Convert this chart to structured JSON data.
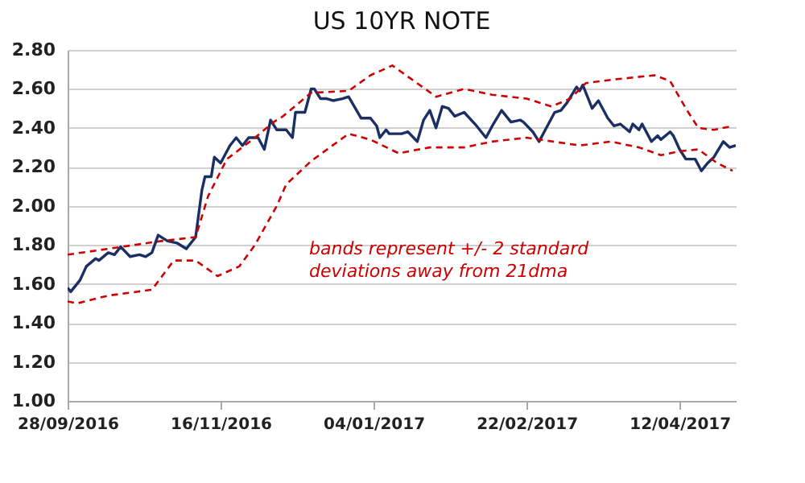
{
  "chart_data": {
    "type": "line",
    "title": "US 10YR NOTE",
    "annotations": [
      "bands represent +/- 2 standard deviations away from 21dma"
    ],
    "xlim": [
      "2016-09-28",
      "2017-04-30"
    ],
    "xticks": [
      {
        "value": "2016-09-28",
        "label": "28/09/2016"
      },
      {
        "value": "2016-11-16",
        "label": "16/11/2016"
      },
      {
        "value": "2017-01-04",
        "label": "04/01/2017"
      },
      {
        "value": "2017-02-22",
        "label": "22/02/2017"
      },
      {
        "value": "2017-04-12",
        "label": "12/04/2017"
      }
    ],
    "ylim": [
      1.0,
      2.8
    ],
    "yticks": [
      {
        "value": 1.0,
        "label": "1.00"
      },
      {
        "value": 1.2,
        "label": "1.20"
      },
      {
        "value": 1.4,
        "label": "1.40"
      },
      {
        "value": 1.6,
        "label": "1.60"
      },
      {
        "value": 1.8,
        "label": "1.80"
      },
      {
        "value": 2.0,
        "label": "2.00"
      },
      {
        "value": 2.2,
        "label": "2.20"
      },
      {
        "value": 2.4,
        "label": "2.40"
      },
      {
        "value": 2.6,
        "label": "2.60"
      },
      {
        "value": 2.8,
        "label": "2.80"
      }
    ],
    "grid": "y",
    "legend": false,
    "marker": "none",
    "series": [
      {
        "color": "#1b2f63",
        "line_style": "solid",
        "x": [
          "2016-09-28",
          "2016-09-29",
          "2016-10-02",
          "2016-10-04",
          "2016-10-07",
          "2016-10-08",
          "2016-10-11",
          "2016-10-13",
          "2016-10-15",
          "2016-10-18",
          "2016-10-21",
          "2016-10-23",
          "2016-10-25",
          "2016-10-27",
          "2016-10-30",
          "2016-11-02",
          "2016-11-05",
          "2016-11-08",
          "2016-11-10",
          "2016-11-11",
          "2016-11-13",
          "2016-11-14",
          "2016-11-16",
          "2016-11-19",
          "2016-11-21",
          "2016-11-23",
          "2016-11-25",
          "2016-11-28",
          "2016-11-30",
          "2016-12-02",
          "2016-12-04",
          "2016-12-07",
          "2016-12-09",
          "2016-12-10",
          "2016-12-13",
          "2016-12-15",
          "2016-12-16",
          "2016-12-18",
          "2016-12-20",
          "2016-12-22",
          "2016-12-25",
          "2016-12-27",
          "2016-12-31",
          "2017-01-03",
          "2017-01-05",
          "2017-01-06",
          "2017-01-08",
          "2017-01-09",
          "2017-01-13",
          "2017-01-15",
          "2017-01-18",
          "2017-01-20",
          "2017-01-22",
          "2017-01-24",
          "2017-01-26",
          "2017-01-28",
          "2017-01-30",
          "2017-02-02",
          "2017-02-06",
          "2017-02-09",
          "2017-02-11",
          "2017-02-14",
          "2017-02-17",
          "2017-02-20",
          "2017-02-21",
          "2017-02-24",
          "2017-02-26",
          "2017-02-28",
          "2017-03-03",
          "2017-03-05",
          "2017-03-07",
          "2017-03-10",
          "2017-03-11",
          "2017-03-12",
          "2017-03-15",
          "2017-03-17",
          "2017-03-20",
          "2017-03-22",
          "2017-03-24",
          "2017-03-27",
          "2017-03-28",
          "2017-03-30",
          "2017-03-31",
          "2017-04-03",
          "2017-04-05",
          "2017-04-06",
          "2017-04-09",
          "2017-04-10",
          "2017-04-12",
          "2017-04-14",
          "2017-04-17",
          "2017-04-19",
          "2017-04-21",
          "2017-04-23",
          "2017-04-26",
          "2017-04-28",
          "2017-04-30"
        ],
        "values": [
          1.58,
          1.56,
          1.62,
          1.69,
          1.73,
          1.72,
          1.76,
          1.75,
          1.79,
          1.74,
          1.75,
          1.74,
          1.76,
          1.85,
          1.82,
          1.81,
          1.78,
          1.84,
          2.08,
          2.15,
          2.15,
          2.25,
          2.22,
          2.31,
          2.35,
          2.31,
          2.35,
          2.35,
          2.29,
          2.44,
          2.39,
          2.39,
          2.35,
          2.48,
          2.48,
          2.6,
          2.6,
          2.55,
          2.55,
          2.54,
          2.55,
          2.56,
          2.45,
          2.45,
          2.41,
          2.35,
          2.39,
          2.37,
          2.37,
          2.38,
          2.33,
          2.44,
          2.49,
          2.4,
          2.51,
          2.5,
          2.46,
          2.48,
          2.41,
          2.35,
          2.41,
          2.49,
          2.43,
          2.44,
          2.43,
          2.38,
          2.33,
          2.39,
          2.48,
          2.49,
          2.53,
          2.61,
          2.59,
          2.62,
          2.5,
          2.54,
          2.45,
          2.41,
          2.42,
          2.38,
          2.42,
          2.39,
          2.42,
          2.33,
          2.36,
          2.34,
          2.38,
          2.36,
          2.29,
          2.24,
          2.24,
          2.18,
          2.22,
          2.25,
          2.33,
          2.3,
          2.31
        ]
      },
      {
        "color": "#cc0000",
        "line_style": "dashed",
        "x": [
          "2016-09-28",
          "2016-10-11",
          "2016-10-28",
          "2016-11-08",
          "2016-11-12",
          "2016-11-18",
          "2016-11-27",
          "2016-12-03",
          "2016-12-06",
          "2016-12-15",
          "2016-12-27",
          "2017-01-03",
          "2017-01-10",
          "2017-01-17",
          "2017-01-24",
          "2017-02-02",
          "2017-02-11",
          "2017-02-22",
          "2017-03-02",
          "2017-03-08",
          "2017-03-13",
          "2017-03-23",
          "2017-04-04",
          "2017-04-09",
          "2017-04-14",
          "2017-04-18",
          "2017-04-23",
          "2017-04-29"
        ],
        "values": [
          1.75,
          1.78,
          1.82,
          1.84,
          2.05,
          2.24,
          2.35,
          2.43,
          2.46,
          2.58,
          2.59,
          2.67,
          2.72,
          2.64,
          2.56,
          2.6,
          2.57,
          2.55,
          2.51,
          2.55,
          2.63,
          2.65,
          2.67,
          2.64,
          2.5,
          2.4,
          2.39,
          2.41
        ]
      },
      {
        "color": "#cc0000",
        "line_style": "dashed",
        "x": [
          "2016-09-28",
          "2016-10-01",
          "2016-10-11",
          "2016-10-25",
          "2016-11-01",
          "2016-11-08",
          "2016-11-15",
          "2016-11-22",
          "2016-11-27",
          "2016-12-04",
          "2016-12-07",
          "2016-12-15",
          "2016-12-27",
          "2017-01-03",
          "2017-01-12",
          "2017-01-22",
          "2017-02-02",
          "2017-02-11",
          "2017-02-22",
          "2017-03-11",
          "2017-03-21",
          "2017-03-30",
          "2017-04-06",
          "2017-04-12",
          "2017-04-18",
          "2017-04-24",
          "2017-04-29"
        ],
        "values": [
          1.51,
          1.5,
          1.54,
          1.57,
          1.72,
          1.72,
          1.64,
          1.69,
          1.8,
          2.0,
          2.11,
          2.23,
          2.37,
          2.34,
          2.27,
          2.3,
          2.3,
          2.33,
          2.35,
          2.31,
          2.33,
          2.3,
          2.26,
          2.28,
          2.29,
          2.22,
          2.18
        ]
      }
    ]
  }
}
